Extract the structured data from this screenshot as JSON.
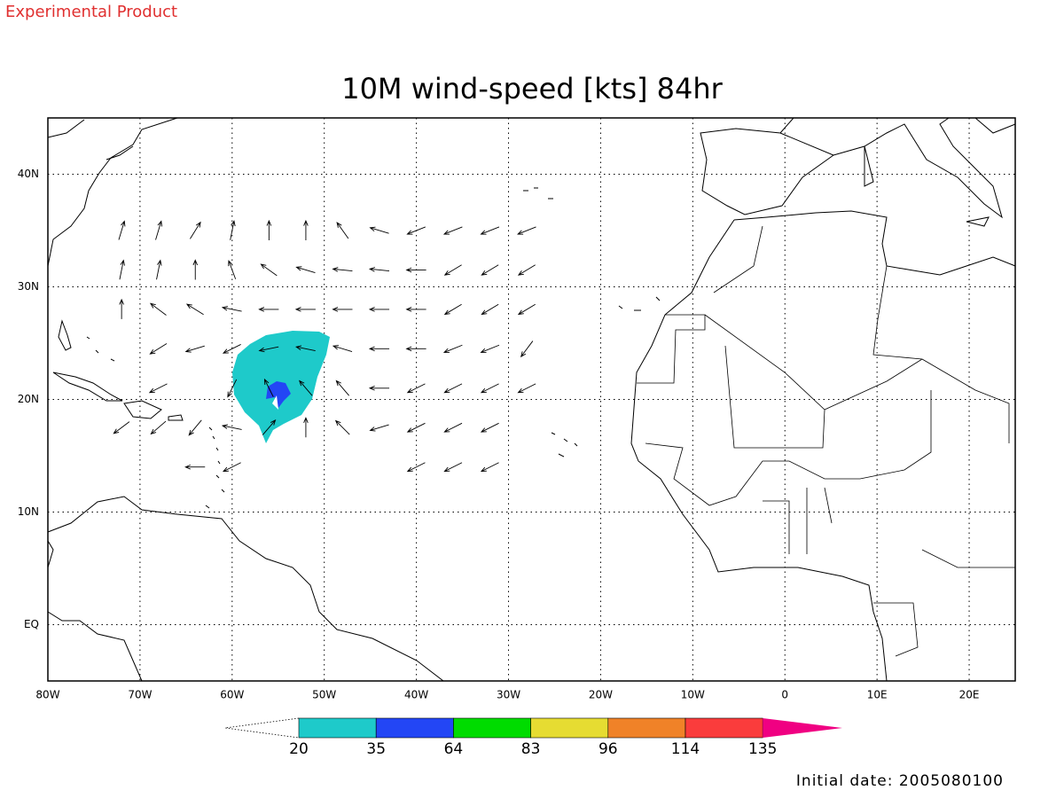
{
  "header": {
    "product": "Experimental Product",
    "title": "10M wind-speed [kts] 84hr",
    "initial_date": "Initial date: 2005080100"
  },
  "map": {
    "lon_range": [
      -80,
      25
    ],
    "lat_range": [
      -5,
      45
    ],
    "grid": true,
    "lon_ticks": [
      {
        "value": -80,
        "label": "80W"
      },
      {
        "value": -70,
        "label": "70W"
      },
      {
        "value": -60,
        "label": "60W"
      },
      {
        "value": -50,
        "label": "50W"
      },
      {
        "value": -40,
        "label": "40W"
      },
      {
        "value": -30,
        "label": "30W"
      },
      {
        "value": -20,
        "label": "20W"
      },
      {
        "value": -10,
        "label": "10W"
      },
      0,
      {
        "value": 10,
        "label": "10E"
      },
      {
        "value": 20,
        "label": "20E"
      }
    ],
    "lat_ticks": [
      {
        "value": 0,
        "label": "EQ"
      },
      {
        "value": 10,
        "label": "10N"
      },
      {
        "value": 20,
        "label": "20N"
      },
      {
        "value": 30,
        "label": "30N"
      },
      {
        "value": 40,
        "label": "40N"
      }
    ]
  },
  "colorbar": {
    "levels": [
      20,
      35,
      64,
      83,
      96,
      114,
      135
    ],
    "colors": [
      "#1ecaca",
      "#2346f5",
      "#00dc00",
      "#e6dc32",
      "#f08228",
      "#fa3c3c",
      "#f00082"
    ]
  },
  "wind": {
    "lons": [
      -72,
      -68,
      -64,
      -60,
      -56,
      -52,
      -48,
      -44,
      -40,
      -36,
      -32,
      -28
    ],
    "lats": [
      35,
      31.5,
      28,
      24.5,
      21,
      17.5,
      14
    ],
    "u": [
      [
        0.3,
        0.3,
        0.5,
        0.2,
        0,
        0,
        -0.5,
        -1,
        -1,
        -1,
        -1,
        -1
      ],
      [
        0.2,
        0.2,
        0,
        -0.3,
        -0.7,
        -1,
        -1,
        -1,
        -1,
        -1,
        -1,
        -1
      ],
      [
        0,
        -0.8,
        -0.8,
        -1,
        -1,
        -1,
        -1,
        -1,
        -1,
        -1,
        -1,
        -1
      ],
      [
        null,
        -0.8,
        -1,
        -0.8,
        -1,
        -1,
        -1,
        -1,
        -1,
        -1,
        -1,
        -0.6
      ],
      [
        null,
        -0.8,
        null,
        -0.4,
        -0.4,
        -0.6,
        -0.6,
        -1,
        -1,
        -1,
        -1,
        -1
      ],
      [
        -0.8,
        -0.7,
        -0.5,
        -1,
        0.6,
        0,
        -0.6,
        -1,
        -1,
        -1,
        -1,
        null
      ],
      [
        null,
        null,
        -1,
        -0.8,
        null,
        null,
        null,
        null,
        -1,
        -1,
        -1,
        null
      ]
    ],
    "v": [
      [
        1,
        1,
        0.8,
        1,
        1,
        1,
        0.7,
        0.3,
        -0.4,
        -0.4,
        -0.4,
        -0.4
      ],
      [
        1,
        1,
        1,
        0.8,
        0.5,
        0.3,
        0.1,
        0.1,
        0,
        -0.6,
        -0.6,
        -0.6
      ],
      [
        1,
        0.6,
        0.5,
        0.2,
        0,
        0,
        0,
        0,
        0,
        -0.6,
        -0.6,
        -0.6
      ],
      [
        null,
        -0.5,
        -0.3,
        -0.4,
        -0.2,
        0.2,
        0.3,
        0,
        0,
        -0.4,
        -0.4,
        -0.8
      ],
      [
        null,
        -0.4,
        null,
        -0.8,
        0.8,
        0.7,
        0.7,
        0,
        -0.5,
        -0.5,
        -0.5,
        -0.5
      ],
      [
        -0.6,
        -0.6,
        -0.6,
        0.2,
        0.7,
        1,
        0.6,
        -0.3,
        -0.5,
        -0.5,
        -0.5,
        null
      ],
      [
        null,
        null,
        0,
        -0.4,
        null,
        null,
        null,
        null,
        -0.5,
        -0.5,
        -0.5,
        null
      ]
    ]
  }
}
